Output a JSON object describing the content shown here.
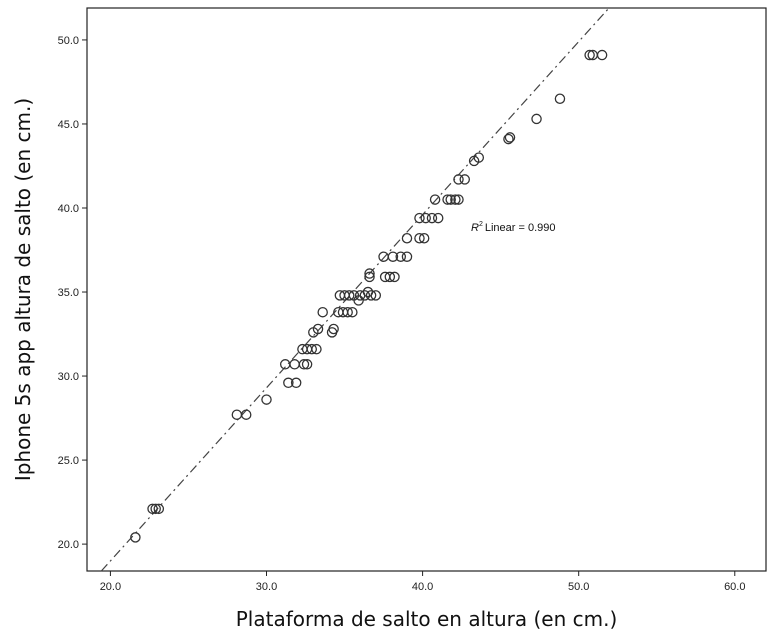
{
  "chart_data": {
    "type": "scatter",
    "title": "",
    "xlabel": "Plataforma de salto en altura (en cm.)",
    "ylabel": "Iphone 5s app altura de salto (en cm.)",
    "xlim": [
      18.5,
      62
    ],
    "ylim": [
      18.4,
      51.9
    ],
    "xticks": [
      "20.0",
      "30.0",
      "40.0",
      "50.0",
      "60.0"
    ],
    "yticks": [
      "20.0",
      "25.0",
      "30.0",
      "35.0",
      "40.0",
      "45.0",
      "50.0"
    ],
    "xtick_values": [
      20,
      30,
      40,
      50,
      60
    ],
    "ytick_values": [
      20,
      25,
      30,
      35,
      40,
      45,
      50
    ],
    "grid": false,
    "annotation": {
      "r_symbol": "R",
      "superscript": "2",
      "text": "Linear = 0.990"
    },
    "fit_line": {
      "style": "dash-dot",
      "slope": 1.03,
      "intercept": -1.6
    },
    "points": [
      {
        "x": 21.6,
        "y": 20.4
      },
      {
        "x": 22.7,
        "y": 22.1
      },
      {
        "x": 22.9,
        "y": 22.1
      },
      {
        "x": 23.1,
        "y": 22.1
      },
      {
        "x": 28.1,
        "y": 27.7
      },
      {
        "x": 28.7,
        "y": 27.7
      },
      {
        "x": 30.0,
        "y": 28.6
      },
      {
        "x": 31.2,
        "y": 30.7
      },
      {
        "x": 31.8,
        "y": 30.7
      },
      {
        "x": 31.4,
        "y": 29.6
      },
      {
        "x": 31.9,
        "y": 29.6
      },
      {
        "x": 32.3,
        "y": 31.6
      },
      {
        "x": 32.6,
        "y": 31.6
      },
      {
        "x": 32.9,
        "y": 31.6
      },
      {
        "x": 33.2,
        "y": 31.6
      },
      {
        "x": 32.4,
        "y": 30.7
      },
      {
        "x": 32.6,
        "y": 30.7
      },
      {
        "x": 33.0,
        "y": 32.6
      },
      {
        "x": 33.3,
        "y": 32.8
      },
      {
        "x": 34.2,
        "y": 32.6
      },
      {
        "x": 34.3,
        "y": 32.8
      },
      {
        "x": 33.6,
        "y": 33.8
      },
      {
        "x": 34.6,
        "y": 33.8
      },
      {
        "x": 34.9,
        "y": 33.8
      },
      {
        "x": 35.2,
        "y": 33.8
      },
      {
        "x": 35.5,
        "y": 33.8
      },
      {
        "x": 34.7,
        "y": 34.8
      },
      {
        "x": 35.0,
        "y": 34.8
      },
      {
        "x": 35.3,
        "y": 34.8
      },
      {
        "x": 35.6,
        "y": 34.8
      },
      {
        "x": 36.0,
        "y": 34.8
      },
      {
        "x": 36.3,
        "y": 34.8
      },
      {
        "x": 36.7,
        "y": 34.8
      },
      {
        "x": 37.0,
        "y": 34.8
      },
      {
        "x": 35.9,
        "y": 34.5
      },
      {
        "x": 36.5,
        "y": 35.0
      },
      {
        "x": 36.6,
        "y": 35.9
      },
      {
        "x": 37.6,
        "y": 35.9
      },
      {
        "x": 37.9,
        "y": 35.9
      },
      {
        "x": 38.2,
        "y": 35.9
      },
      {
        "x": 36.6,
        "y": 36.1
      },
      {
        "x": 37.5,
        "y": 37.1
      },
      {
        "x": 38.1,
        "y": 37.1
      },
      {
        "x": 38.6,
        "y": 37.1
      },
      {
        "x": 39.0,
        "y": 37.1
      },
      {
        "x": 39.0,
        "y": 38.2
      },
      {
        "x": 39.8,
        "y": 38.2
      },
      {
        "x": 40.1,
        "y": 38.2
      },
      {
        "x": 39.8,
        "y": 39.4
      },
      {
        "x": 40.2,
        "y": 39.4
      },
      {
        "x": 40.6,
        "y": 39.4
      },
      {
        "x": 41.0,
        "y": 39.4
      },
      {
        "x": 40.8,
        "y": 40.5
      },
      {
        "x": 41.6,
        "y": 40.5
      },
      {
        "x": 41.8,
        "y": 40.5
      },
      {
        "x": 42.3,
        "y": 40.5
      },
      {
        "x": 42.1,
        "y": 40.5
      },
      {
        "x": 42.3,
        "y": 41.7
      },
      {
        "x": 42.7,
        "y": 41.7
      },
      {
        "x": 43.3,
        "y": 42.8
      },
      {
        "x": 43.6,
        "y": 43.0
      },
      {
        "x": 45.5,
        "y": 44.1
      },
      {
        "x": 45.6,
        "y": 44.2
      },
      {
        "x": 47.3,
        "y": 45.3
      },
      {
        "x": 48.8,
        "y": 46.5
      },
      {
        "x": 50.7,
        "y": 49.1
      },
      {
        "x": 50.9,
        "y": 49.1
      },
      {
        "x": 51.5,
        "y": 49.1
      }
    ]
  }
}
